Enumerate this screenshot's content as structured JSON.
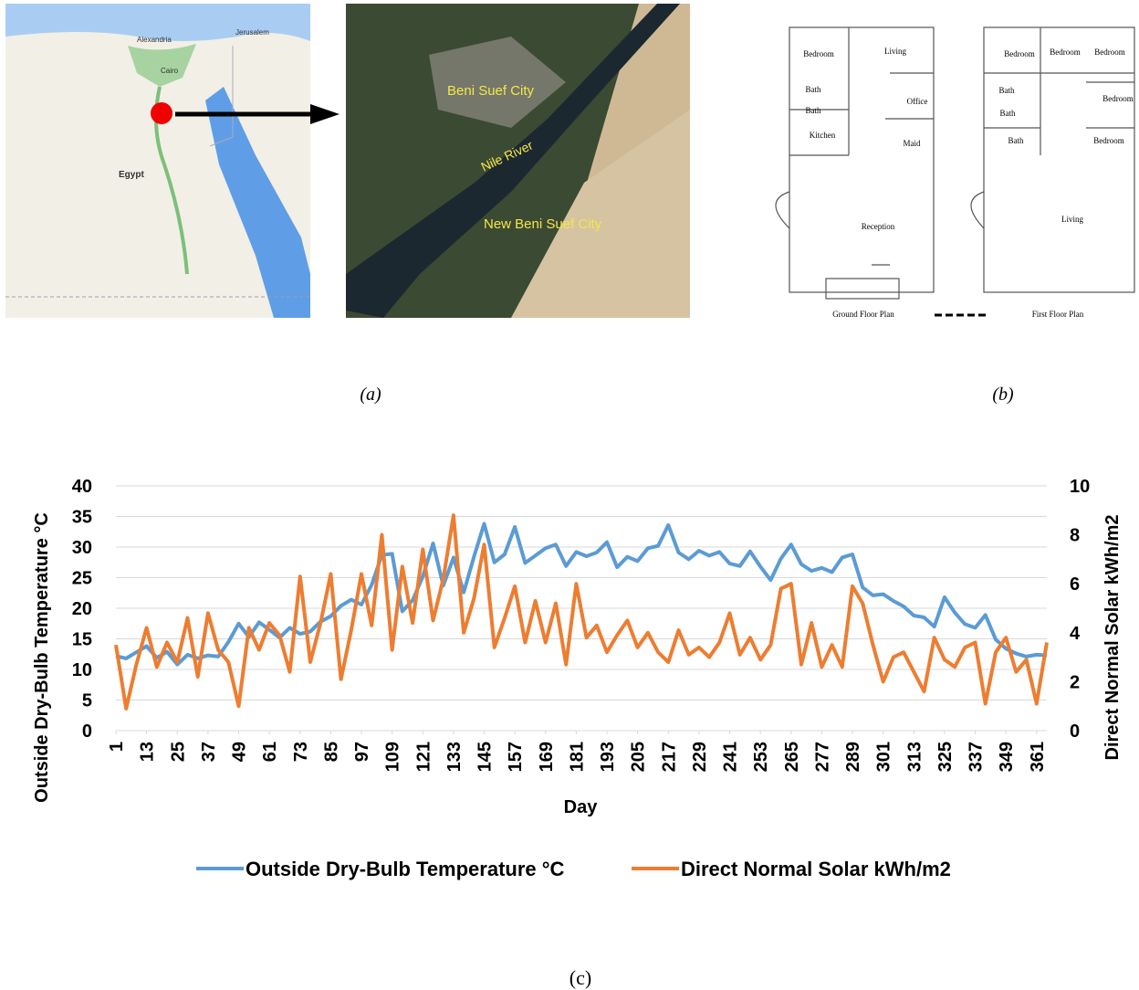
{
  "figure_a": {
    "map_labels": [
      "Alexandria",
      "Cairo",
      "Jerusalem",
      "Egypt"
    ],
    "satellite_labels": [
      "Beni Suef City",
      "Nile River",
      "New Beni Suef City"
    ],
    "caption": "(a)"
  },
  "figure_b": {
    "ground_floor": {
      "rooms": [
        "Bedroom",
        "Living",
        "Bath",
        "Bath",
        "Office",
        "Kitchen",
        "Maid",
        "Reception"
      ],
      "title": "Ground Floor Plan"
    },
    "first_floor": {
      "rooms": [
        "Bedroom",
        "Bedroom",
        "Bedroom",
        "Bath",
        "Bedroom",
        "Bath",
        "Bath",
        "Bedroom",
        "Living"
      ],
      "title": "First Floor Plan"
    },
    "caption": "(b)"
  },
  "chart_data": {
    "type": "line",
    "xlabel": "Day",
    "ylabel": "Outside Dry-Bulb Temperature °C",
    "y2label": "Direct Normal Solar kWh/m2",
    "x": [
      1,
      5,
      9,
      13,
      17,
      21,
      25,
      29,
      33,
      37,
      41,
      45,
      49,
      53,
      57,
      61,
      65,
      69,
      73,
      77,
      81,
      85,
      89,
      93,
      97,
      101,
      105,
      109,
      113,
      117,
      121,
      125,
      129,
      133,
      137,
      141,
      145,
      149,
      153,
      157,
      161,
      165,
      169,
      173,
      177,
      181,
      185,
      189,
      193,
      197,
      201,
      205,
      209,
      213,
      217,
      221,
      225,
      229,
      233,
      237,
      241,
      245,
      249,
      253,
      257,
      261,
      265,
      269,
      273,
      277,
      281,
      285,
      289,
      293,
      297,
      301,
      305,
      309,
      313,
      317,
      321,
      325,
      329,
      333,
      337,
      341,
      345,
      349,
      353,
      357,
      361,
      365
    ],
    "xlim": [
      1,
      365
    ],
    "xticks": [
      1,
      13,
      25,
      37,
      49,
      61,
      73,
      85,
      97,
      109,
      121,
      133,
      145,
      157,
      169,
      181,
      193,
      205,
      217,
      229,
      241,
      253,
      265,
      277,
      289,
      301,
      313,
      325,
      337,
      349,
      361
    ],
    "ylim": [
      0,
      40
    ],
    "yticks": [
      0,
      5,
      10,
      15,
      20,
      25,
      30,
      35,
      40
    ],
    "y2lim": [
      0,
      10
    ],
    "y2ticks": [
      0,
      2,
      4,
      6,
      8,
      10
    ],
    "grid": true,
    "legend": "bottom",
    "series": [
      {
        "name": "Outside Dry-Bulb Temperature °C",
        "color": "#5b9bd5",
        "values": [
          12.2,
          11.8,
          12.8,
          13.8,
          11.9,
          12.9,
          10.8,
          12.4,
          11.8,
          12.3,
          12.1,
          14.5,
          17.5,
          15.3,
          17.7,
          16.5,
          15.2,
          16.8,
          15.8,
          16.2,
          17.8,
          18.7,
          20.4,
          21.4,
          20.6,
          23.8,
          28.7,
          28.9,
          19.5,
          21.3,
          25.2,
          30.6,
          23.7,
          28.3,
          22.6,
          28.4,
          33.8,
          27.5,
          28.8,
          33.3,
          27.4,
          28.6,
          29.8,
          30.4,
          26.9,
          29.2,
          28.5,
          29.1,
          30.8,
          26.7,
          28.4,
          27.7,
          29.8,
          30.2,
          33.6,
          29.1,
          28.0,
          29.4,
          28.6,
          29.2,
          27.3,
          26.9,
          29.3,
          26.8,
          24.6,
          28.1,
          30.4,
          27.2,
          26.1,
          26.6,
          25.9,
          28.3,
          28.8,
          23.4,
          22.1,
          22.3,
          21.2,
          20.3,
          18.8,
          18.5,
          17.0,
          21.8,
          19.3,
          17.4,
          16.8,
          18.9,
          14.9,
          13.4,
          12.6,
          12.1,
          12.4,
          12.3
        ]
      },
      {
        "name": "Direct Normal Solar kWh/m2",
        "color": "#ed7d31",
        "axis": "y2",
        "values": [
          3.5,
          0.9,
          2.7,
          4.2,
          2.6,
          3.6,
          2.8,
          4.6,
          2.2,
          4.8,
          3.3,
          2.8,
          1.0,
          4.2,
          3.3,
          4.4,
          3.9,
          2.4,
          6.3,
          2.8,
          4.4,
          6.4,
          2.1,
          4.1,
          6.4,
          4.3,
          8.0,
          3.3,
          6.7,
          4.4,
          7.4,
          4.5,
          6.2,
          8.8,
          4.0,
          5.4,
          7.6,
          3.4,
          4.6,
          5.9,
          3.6,
          5.3,
          3.6,
          5.2,
          2.7,
          6.0,
          3.8,
          4.3,
          3.2,
          3.9,
          4.5,
          3.4,
          4.0,
          3.2,
          2.8,
          4.1,
          3.1,
          3.4,
          3.0,
          3.6,
          4.8,
          3.1,
          3.8,
          2.9,
          3.5,
          5.8,
          6.0,
          2.7,
          4.4,
          2.6,
          3.5,
          2.6,
          5.9,
          5.2,
          3.5,
          2.0,
          3.0,
          3.2,
          2.4,
          1.6,
          3.8,
          2.9,
          2.6,
          3.4,
          3.6,
          1.1,
          3.2,
          3.8,
          2.4,
          2.9,
          1.1,
          3.6
        ]
      }
    ]
  },
  "caption_c": "(c)"
}
